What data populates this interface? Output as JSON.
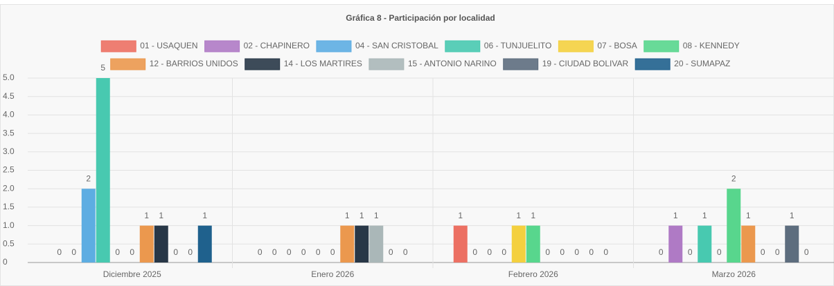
{
  "chart_data": {
    "type": "bar",
    "title": "Gráfica 8 - Participación por localidad",
    "categories": [
      "Diciembre 2025",
      "Enero 2026",
      "Febrero 2026",
      "Marzo 2026"
    ],
    "series": [
      {
        "name": "01 - USAQUEN",
        "color": "#ec7063",
        "values": [
          0,
          0,
          1,
          0
        ]
      },
      {
        "name": "02 - CHAPINERO",
        "color": "#af7ac5",
        "values": [
          0,
          0,
          0,
          1
        ]
      },
      {
        "name": "04 - SAN CRISTOBAL",
        "color": "#5dade2",
        "values": [
          2,
          0,
          0,
          0
        ]
      },
      {
        "name": "06 - TUNJUELITO",
        "color": "#48c9b0",
        "values": [
          5,
          0,
          0,
          1
        ]
      },
      {
        "name": "07 - BOSA",
        "color": "#f4d03f",
        "values": [
          0,
          0,
          1,
          0
        ]
      },
      {
        "name": "08 - KENNEDY",
        "color": "#58d68d",
        "values": [
          0,
          0,
          1,
          2
        ]
      },
      {
        "name": "12 - BARRIOS UNIDOS",
        "color": "#eb984e",
        "values": [
          1,
          1,
          0,
          1
        ]
      },
      {
        "name": "14 - LOS MARTIRES",
        "color": "#283747",
        "values": [
          1,
          1,
          0,
          0
        ]
      },
      {
        "name": "15 - ANTONIO NARINO",
        "color": "#aab7b8",
        "values": [
          0,
          1,
          0,
          0
        ]
      },
      {
        "name": "19 - CIUDAD BOLIVAR",
        "color": "#5d6d7e",
        "values": [
          0,
          0,
          0,
          1
        ]
      },
      {
        "name": "20 - SUMAPAZ",
        "color": "#1f618d",
        "values": [
          1,
          0,
          0,
          0
        ]
      }
    ],
    "ylim": [
      0,
      5
    ],
    "yticks": [
      0,
      0.5,
      {
        "value": 1,
        "label": "1.0"
      },
      1.5,
      {
        "value": 2,
        "label": "2.0"
      },
      2.5,
      {
        "value": 3,
        "label": "3.0"
      },
      3.5,
      {
        "value": 4,
        "label": "4.0"
      },
      4.5,
      {
        "value": 5,
        "label": "5.0"
      }
    ],
    "grid": true
  }
}
